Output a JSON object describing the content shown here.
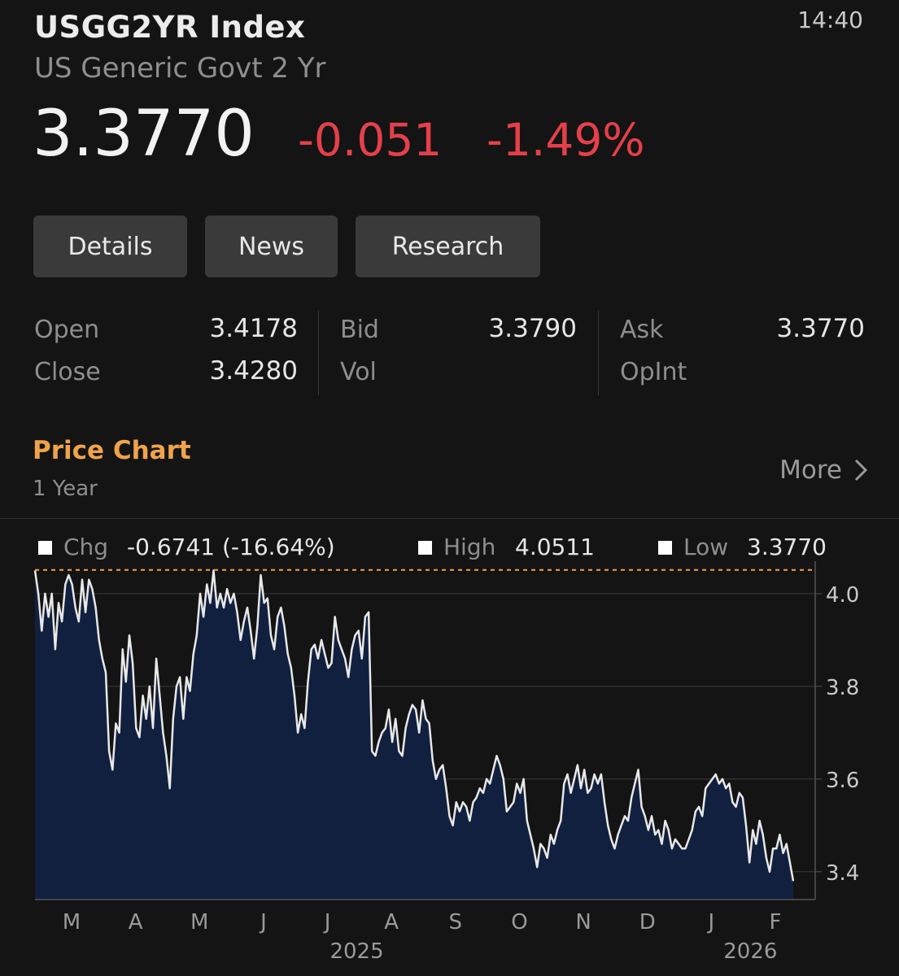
{
  "header": {
    "ticker": "USGG2YR  Index",
    "time": "14:40",
    "description": "US Generic Govt 2 Yr",
    "price": "3.3770",
    "change": "-0.051",
    "change_pct": "-1.49%"
  },
  "tabs": [
    {
      "label": "Details"
    },
    {
      "label": "News"
    },
    {
      "label": "Research"
    }
  ],
  "quote": {
    "open_label": "Open",
    "open_value": "3.4178",
    "close_label": "Close",
    "close_value": "3.4280",
    "bid_label": "Bid",
    "bid_value": "3.3790",
    "vol_label": "Vol",
    "ask_label": "Ask",
    "ask_value": "3.3770",
    "opint_label": "OpInt"
  },
  "chart_section": {
    "title": "Price Chart",
    "period": "1 Year",
    "more_label": "More",
    "legend": {
      "chg_label": "Chg",
      "chg_value": "-0.6741 (-16.64%)",
      "high_label": "High",
      "high_value": "4.0511",
      "low_label": "Low",
      "low_value": "3.3770"
    }
  },
  "chart_data": {
    "type": "area",
    "title": "",
    "xlabel": "",
    "ylabel": "",
    "x_month_ticks": [
      "M",
      "A",
      "M",
      "J",
      "J",
      "A",
      "S",
      "O",
      "N",
      "D",
      "J",
      "F"
    ],
    "x_year_labels": [
      "2025",
      "2026"
    ],
    "y_ticks": [
      4.0,
      3.8,
      3.6,
      3.4
    ],
    "y_tick_labels": [
      "4.0",
      "3.8",
      "3.6",
      "3.4"
    ],
    "ylim": [
      3.34,
      4.07
    ],
    "high_line": 4.0511,
    "grid": "horizontal",
    "series": [
      {
        "values": [
          4.05,
          4.0,
          3.92,
          4.0,
          3.95,
          4.0,
          3.88,
          3.98,
          3.94,
          4.02,
          4.04,
          4.02,
          3.97,
          3.94,
          4.03,
          3.96,
          4.03,
          4.01,
          3.97,
          3.9,
          3.86,
          3.83,
          3.66,
          3.62,
          3.72,
          3.7,
          3.88,
          3.81,
          3.91,
          3.85,
          3.71,
          3.69,
          3.78,
          3.73,
          3.8,
          3.71,
          3.86,
          3.78,
          3.7,
          3.65,
          3.58,
          3.73,
          3.8,
          3.82,
          3.73,
          3.82,
          3.79,
          3.87,
          3.91,
          4.0,
          3.95,
          4.02,
          3.98,
          4.05,
          3.97,
          4.0,
          3.97,
          4.01,
          3.98,
          4.0,
          3.96,
          3.9,
          3.94,
          3.97,
          3.92,
          3.86,
          3.93,
          4.04,
          3.98,
          3.99,
          3.91,
          3.88,
          3.95,
          3.97,
          3.93,
          3.87,
          3.84,
          3.78,
          3.7,
          3.74,
          3.71,
          3.81,
          3.88,
          3.89,
          3.86,
          3.9,
          3.87,
          3.84,
          3.85,
          3.95,
          3.9,
          3.88,
          3.86,
          3.82,
          3.88,
          3.91,
          3.92,
          3.86,
          3.95,
          3.96,
          3.66,
          3.65,
          3.68,
          3.7,
          3.71,
          3.75,
          3.68,
          3.73,
          3.66,
          3.65,
          3.71,
          3.74,
          3.76,
          3.75,
          3.7,
          3.77,
          3.73,
          3.72,
          3.64,
          3.6,
          3.62,
          3.63,
          3.58,
          3.52,
          3.5,
          3.55,
          3.53,
          3.55,
          3.54,
          3.51,
          3.55,
          3.56,
          3.58,
          3.57,
          3.6,
          3.59,
          3.62,
          3.65,
          3.63,
          3.6,
          3.53,
          3.54,
          3.55,
          3.59,
          3.57,
          3.6,
          3.51,
          3.48,
          3.45,
          3.41,
          3.46,
          3.45,
          3.43,
          3.48,
          3.46,
          3.49,
          3.51,
          3.59,
          3.61,
          3.57,
          3.6,
          3.63,
          3.58,
          3.62,
          3.57,
          3.58,
          3.61,
          3.59,
          3.61,
          3.55,
          3.5,
          3.47,
          3.45,
          3.48,
          3.5,
          3.52,
          3.51,
          3.56,
          3.59,
          3.62,
          3.54,
          3.52,
          3.49,
          3.52,
          3.48,
          3.49,
          3.46,
          3.51,
          3.49,
          3.45,
          3.47,
          3.46,
          3.45,
          3.45,
          3.47,
          3.49,
          3.53,
          3.54,
          3.52,
          3.58,
          3.59,
          3.6,
          3.61,
          3.59,
          3.6,
          3.58,
          3.59,
          3.55,
          3.54,
          3.57,
          3.56,
          3.5,
          3.42,
          3.49,
          3.46,
          3.51,
          3.48,
          3.43,
          3.4,
          3.45,
          3.45,
          3.48,
          3.44,
          3.46,
          3.42,
          3.38
        ]
      }
    ]
  }
}
